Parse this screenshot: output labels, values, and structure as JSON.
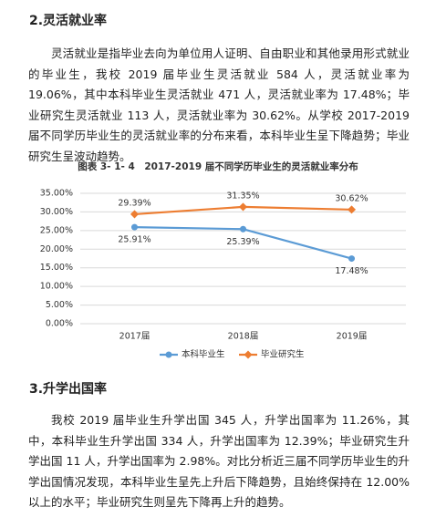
{
  "section1": {
    "heading": "2.灵活就业率",
    "paragraph": "灵活就业是指毕业去向为单位用人证明、自由职业和其他录用形式就业的毕业生，我校 2019 届毕业生灵活就业 584 人，灵活就业率为 19.06%，其中本科毕业生灵活就业 471 人，灵活就业率为 17.48%；毕业研究生灵活就业 113 人，灵活就业率为 30.62%。从学校 2017-2019 届不同学历毕业生的灵活就业率的分布来看，本科毕业生呈下降趋势；毕业研究生呈波动趋势。"
  },
  "chart_data": {
    "type": "line",
    "title": "图表 3- 1- 4　2017-2019 届不同学历毕业生的灵活就业率分布",
    "categories": [
      "2017届",
      "2018届",
      "2019届"
    ],
    "series": [
      {
        "name": "本科毕业生",
        "color": "#5b9bd5",
        "values": [
          25.91,
          25.39,
          17.48
        ],
        "value_labels": [
          "25.91%",
          "25.39%",
          "17.48%"
        ]
      },
      {
        "name": "毕业研究生",
        "color": "#ed7d31",
        "values": [
          29.39,
          31.35,
          30.62
        ],
        "value_labels": [
          "29.39%",
          "31.35%",
          "30.62%"
        ]
      }
    ],
    "ylim": [
      0,
      35
    ],
    "yticks": [
      {
        "value": 0,
        "label": "0.00%"
      },
      {
        "value": 5,
        "label": "5.00%"
      },
      {
        "value": 10,
        "label": "10.00%"
      },
      {
        "value": 15,
        "label": "15.00%"
      },
      {
        "value": 20,
        "label": "20.00%"
      },
      {
        "value": 25,
        "label": "25.00%"
      },
      {
        "value": 30,
        "label": "30.00%"
      },
      {
        "value": 35,
        "label": "35.00%"
      }
    ],
    "grid": true,
    "legend": "bottom"
  },
  "section2": {
    "heading": "3.升学出国率",
    "paragraph": "我校 2019 届毕业生升学出国 345 人，升学出国率为 11.26%，其中，本科毕业生升学出国 334 人，升学出国率为 12.39%；毕业研究生升学出国 11 人，升学出国率为 2.98%。对比分析近三届不同学历毕业生的升学出国情况发现，本科毕业生呈先上升后下降趋势，且始终保持在 12.00%以上的水平；毕业研究生则呈先下降再上升的趋势。"
  }
}
